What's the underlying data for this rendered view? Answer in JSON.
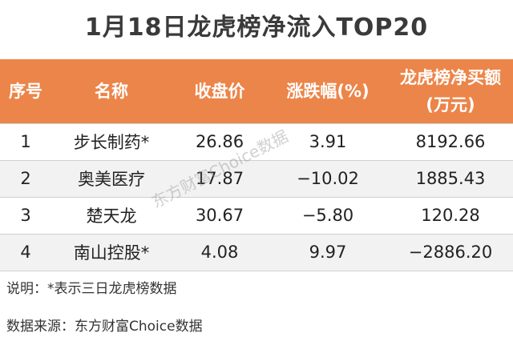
{
  "title": "1月18日龙虎榜净流入TOP20",
  "table": {
    "headers": [
      "序号",
      "名称",
      "收盘价",
      "涨跌幅(%)",
      "龙虎榜净买额(万元)"
    ],
    "rows": [
      [
        "1",
        "步长制药*",
        "26.86",
        "3.91",
        "8192.66"
      ],
      [
        "2",
        "奥美医疗",
        "17.87",
        "−10.02",
        "1885.43"
      ],
      [
        "3",
        "楚天龙",
        "30.67",
        "−5.80",
        "120.28"
      ],
      [
        "4",
        "南山控股*",
        "4.08",
        "9.97",
        "−2886.20"
      ]
    ]
  },
  "watermark": "东方财富Choice数据",
  "notes": {
    "explanation": "说明：*表示三日龙虎榜数据",
    "source": "数据来源：东方财富Choice数据"
  },
  "colors": {
    "header_bg": "#ec8549",
    "stripe": "#f2f2f2"
  }
}
